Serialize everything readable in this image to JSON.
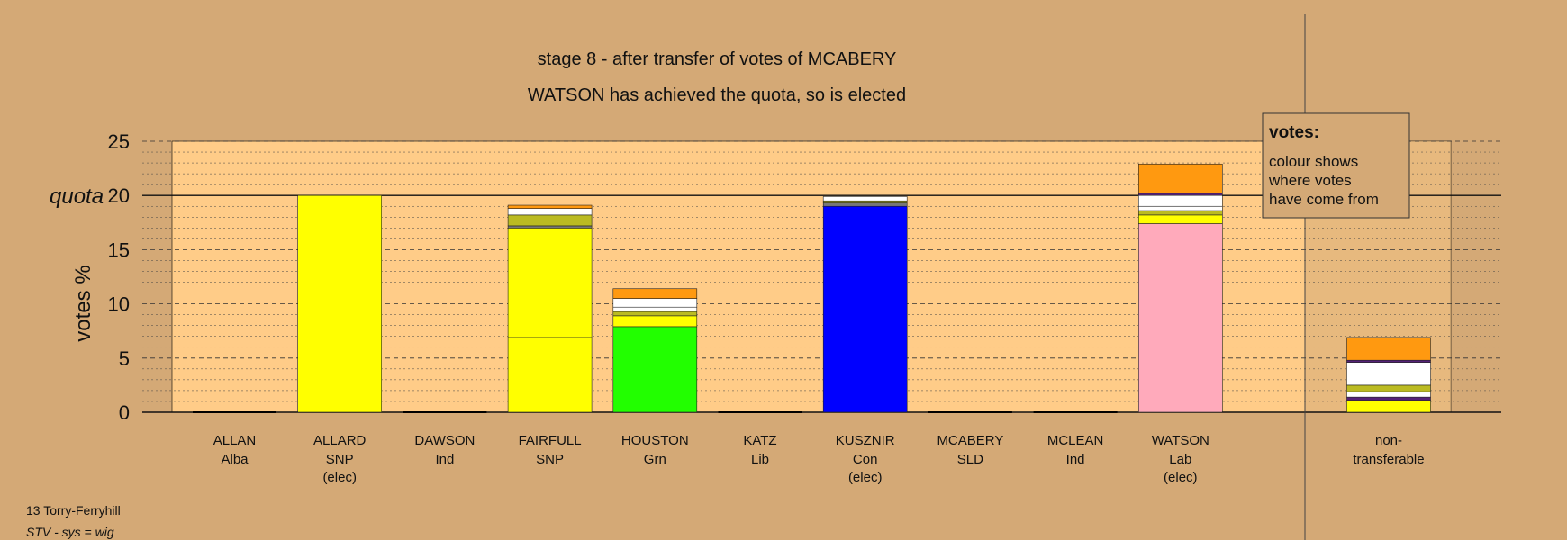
{
  "title": "stage 8 - after transfer of votes of MCABERY",
  "subtitle": "WATSON has achieved the quota, so is elected",
  "ward": "13 Torry-Ferryhill",
  "system": "STV - sys = wig",
  "legend": {
    "heading": "votes:",
    "lines": [
      "colour shows",
      "where votes",
      "have come from"
    ]
  },
  "colors": {
    "background": "#d4a976",
    "plot_area": "#ffcc88",
    "snp": "#ffff00",
    "grn": "#22ff00",
    "con": "#0000ff",
    "lab": "#ffaabb",
    "olive": "#bbbb22",
    "white": "#ffffff",
    "orange": "#ff9910",
    "purple": "#552277",
    "grey": "#777777"
  },
  "chart_data": {
    "type": "bar",
    "stacked": true,
    "ylabel": "votes %",
    "ylim": [
      0,
      25
    ],
    "yticks": [
      0,
      5,
      10,
      15,
      20,
      25
    ],
    "quota": 20,
    "quota_label": "quota",
    "categories": [
      {
        "name": "ALLAN",
        "party": "Alba",
        "status": ""
      },
      {
        "name": "ALLARD",
        "party": "SNP",
        "status": "(elec)"
      },
      {
        "name": "DAWSON",
        "party": "Ind",
        "status": ""
      },
      {
        "name": "FAIRFULL",
        "party": "SNP",
        "status": ""
      },
      {
        "name": "HOUSTON",
        "party": "Grn",
        "status": ""
      },
      {
        "name": "KATZ",
        "party": "Lib",
        "status": ""
      },
      {
        "name": "KUSZNIR",
        "party": "Con",
        "status": "(elec)"
      },
      {
        "name": "MCABERY",
        "party": "SLD",
        "status": ""
      },
      {
        "name": "MCLEAN",
        "party": "Ind",
        "status": ""
      },
      {
        "name": "WATSON",
        "party": "Lab",
        "status": "(elec)"
      }
    ],
    "nontransferable_label": [
      "non-",
      "transferable"
    ],
    "bars": [
      [],
      [
        {
          "value": 20.0,
          "color": "#ffff00"
        }
      ],
      [],
      [
        {
          "value": 6.9,
          "color": "#ffff00"
        },
        {
          "value": 10.1,
          "color": "#ffff00"
        },
        {
          "value": 0.2,
          "color": "#777777"
        },
        {
          "value": 1.0,
          "color": "#bbbb22"
        },
        {
          "value": 0.6,
          "color": "#ffffff"
        },
        {
          "value": 0.3,
          "color": "#ff9910"
        }
      ],
      [
        {
          "value": 7.9,
          "color": "#22ff00"
        },
        {
          "value": 1.0,
          "color": "#ffff00"
        },
        {
          "value": 0.4,
          "color": "#bbbb22"
        },
        {
          "value": 0.4,
          "color": "#ffffff"
        },
        {
          "value": 0.8,
          "color": "#ffffff"
        },
        {
          "value": 0.9,
          "color": "#ff9910"
        }
      ],
      [],
      [
        {
          "value": 19.0,
          "color": "#0000ff"
        },
        {
          "value": 0.3,
          "color": "#777777"
        },
        {
          "value": 0.2,
          "color": "#bbbb22"
        },
        {
          "value": 0.4,
          "color": "#ffffff"
        }
      ],
      [],
      [],
      [
        {
          "value": 17.4,
          "color": "#ffaabb"
        },
        {
          "value": 0.8,
          "color": "#ffff00"
        },
        {
          "value": 0.4,
          "color": "#bbbb22"
        },
        {
          "value": 0.4,
          "color": "#ffffff"
        },
        {
          "value": 1.0,
          "color": "#ffffff"
        },
        {
          "value": 0.2,
          "color": "#552277"
        },
        {
          "value": 2.7,
          "color": "#ff9910"
        }
      ]
    ],
    "nontransferable": [
      {
        "value": 1.1,
        "color": "#ffff00"
      },
      {
        "value": 0.3,
        "color": "#552277"
      },
      {
        "value": 0.5,
        "color": "#ffffff"
      },
      {
        "value": 0.6,
        "color": "#bbbb22"
      },
      {
        "value": 2.1,
        "color": "#ffffff"
      },
      {
        "value": 0.2,
        "color": "#552277"
      },
      {
        "value": 2.1,
        "color": "#ff9910"
      }
    ]
  }
}
